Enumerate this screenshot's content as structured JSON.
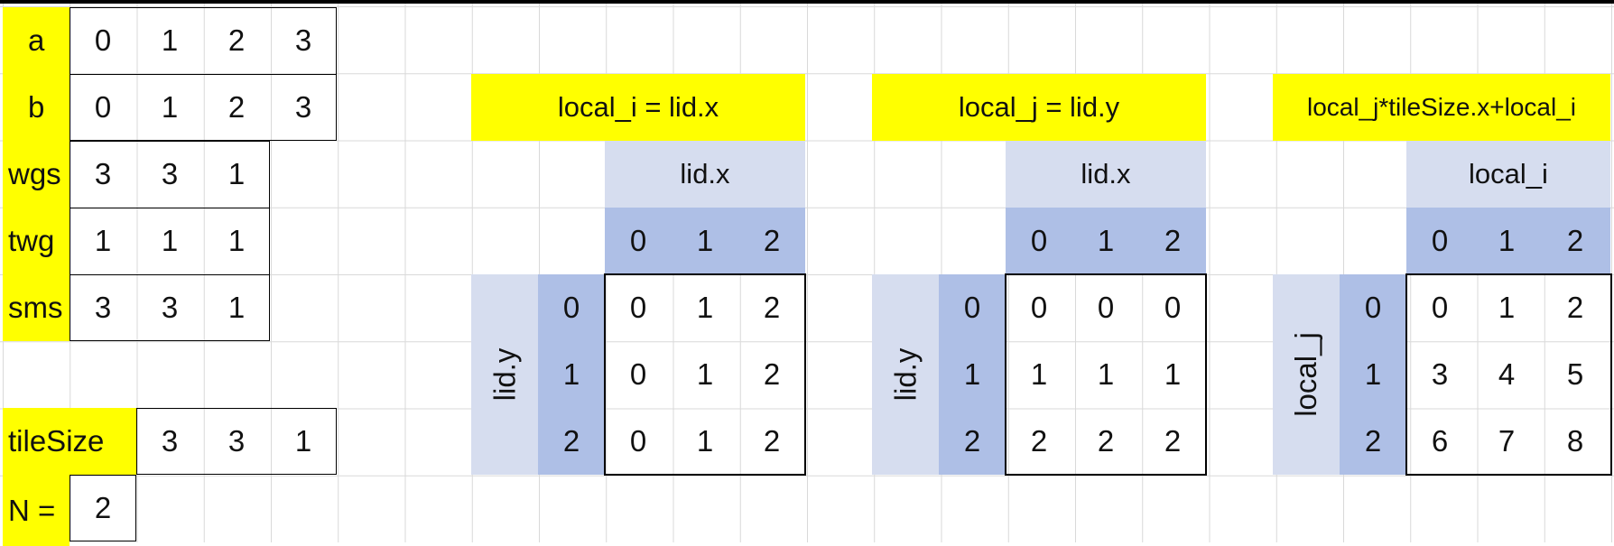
{
  "left_table": {
    "rows": [
      {
        "label": "a",
        "values": [
          "0",
          "1",
          "2",
          "3"
        ]
      },
      {
        "label": "b",
        "values": [
          "0",
          "1",
          "2",
          "3"
        ]
      },
      {
        "label": "wgs",
        "values": [
          "3",
          "3",
          "1"
        ]
      },
      {
        "label": "twg",
        "values": [
          "1",
          "1",
          "1"
        ]
      },
      {
        "label": "sms",
        "values": [
          "3",
          "3",
          "1"
        ]
      }
    ],
    "tilesize": {
      "label": "tileSize",
      "values": [
        "3",
        "3",
        "1"
      ]
    },
    "n": {
      "label": "N =",
      "value": "2"
    }
  },
  "grids": [
    {
      "title": "local_i = lid.x",
      "col_header": "lid.x",
      "row_header": "lid.y",
      "col_index": [
        "0",
        "1",
        "2"
      ],
      "row_index": [
        "0",
        "1",
        "2"
      ],
      "cells": [
        [
          "0",
          "1",
          "2"
        ],
        [
          "0",
          "1",
          "2"
        ],
        [
          "0",
          "1",
          "2"
        ]
      ]
    },
    {
      "title": "local_j = lid.y",
      "col_header": "lid.x",
      "row_header": "lid.y",
      "col_index": [
        "0",
        "1",
        "2"
      ],
      "row_index": [
        "0",
        "1",
        "2"
      ],
      "cells": [
        [
          "0",
          "0",
          "0"
        ],
        [
          "1",
          "1",
          "1"
        ],
        [
          "2",
          "2",
          "2"
        ]
      ]
    },
    {
      "title": "local_j*tileSize.x+local_i",
      "col_header": "local_i",
      "row_header": "local_j",
      "col_index": [
        "0",
        "1",
        "2"
      ],
      "row_index": [
        "0",
        "1",
        "2"
      ],
      "cells": [
        [
          "0",
          "1",
          "2"
        ],
        [
          "3",
          "4",
          "5"
        ],
        [
          "6",
          "7",
          "8"
        ]
      ]
    }
  ],
  "colors": {
    "highlight": "#ffff00",
    "header_light": "#d6ddef",
    "header_dark": "#aebfe6",
    "gridline": "#d9d9d9"
  }
}
